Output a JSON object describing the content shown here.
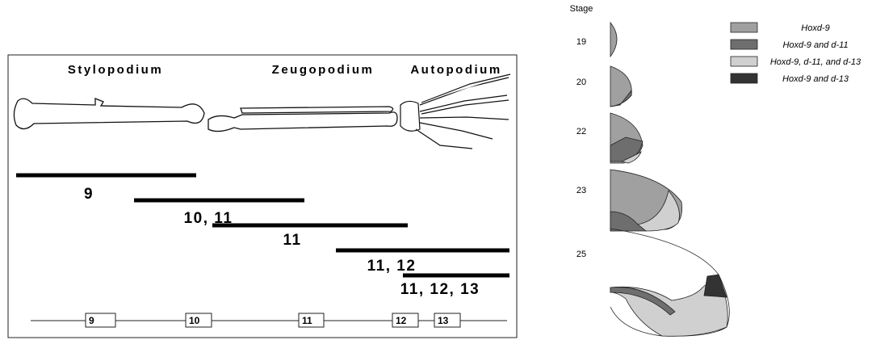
{
  "left_panel": {
    "segments": [
      "Stylopodium",
      "Zeugopodium",
      "Autopodium"
    ],
    "expression_domains": [
      "9",
      "10, 11",
      "11",
      "11, 12",
      "11, 12, 13"
    ],
    "genes": [
      "9",
      "10",
      "11",
      "12",
      "13"
    ]
  },
  "right_panel": {
    "stage_label": "Stage",
    "stages": [
      "19",
      "20",
      "22",
      "23",
      "25"
    ],
    "legend": [
      "Hoxd-9",
      "Hoxd-9 and d-11",
      "Hoxd-9, d-11, and d-13",
      "Hoxd-9 and d-13"
    ]
  }
}
